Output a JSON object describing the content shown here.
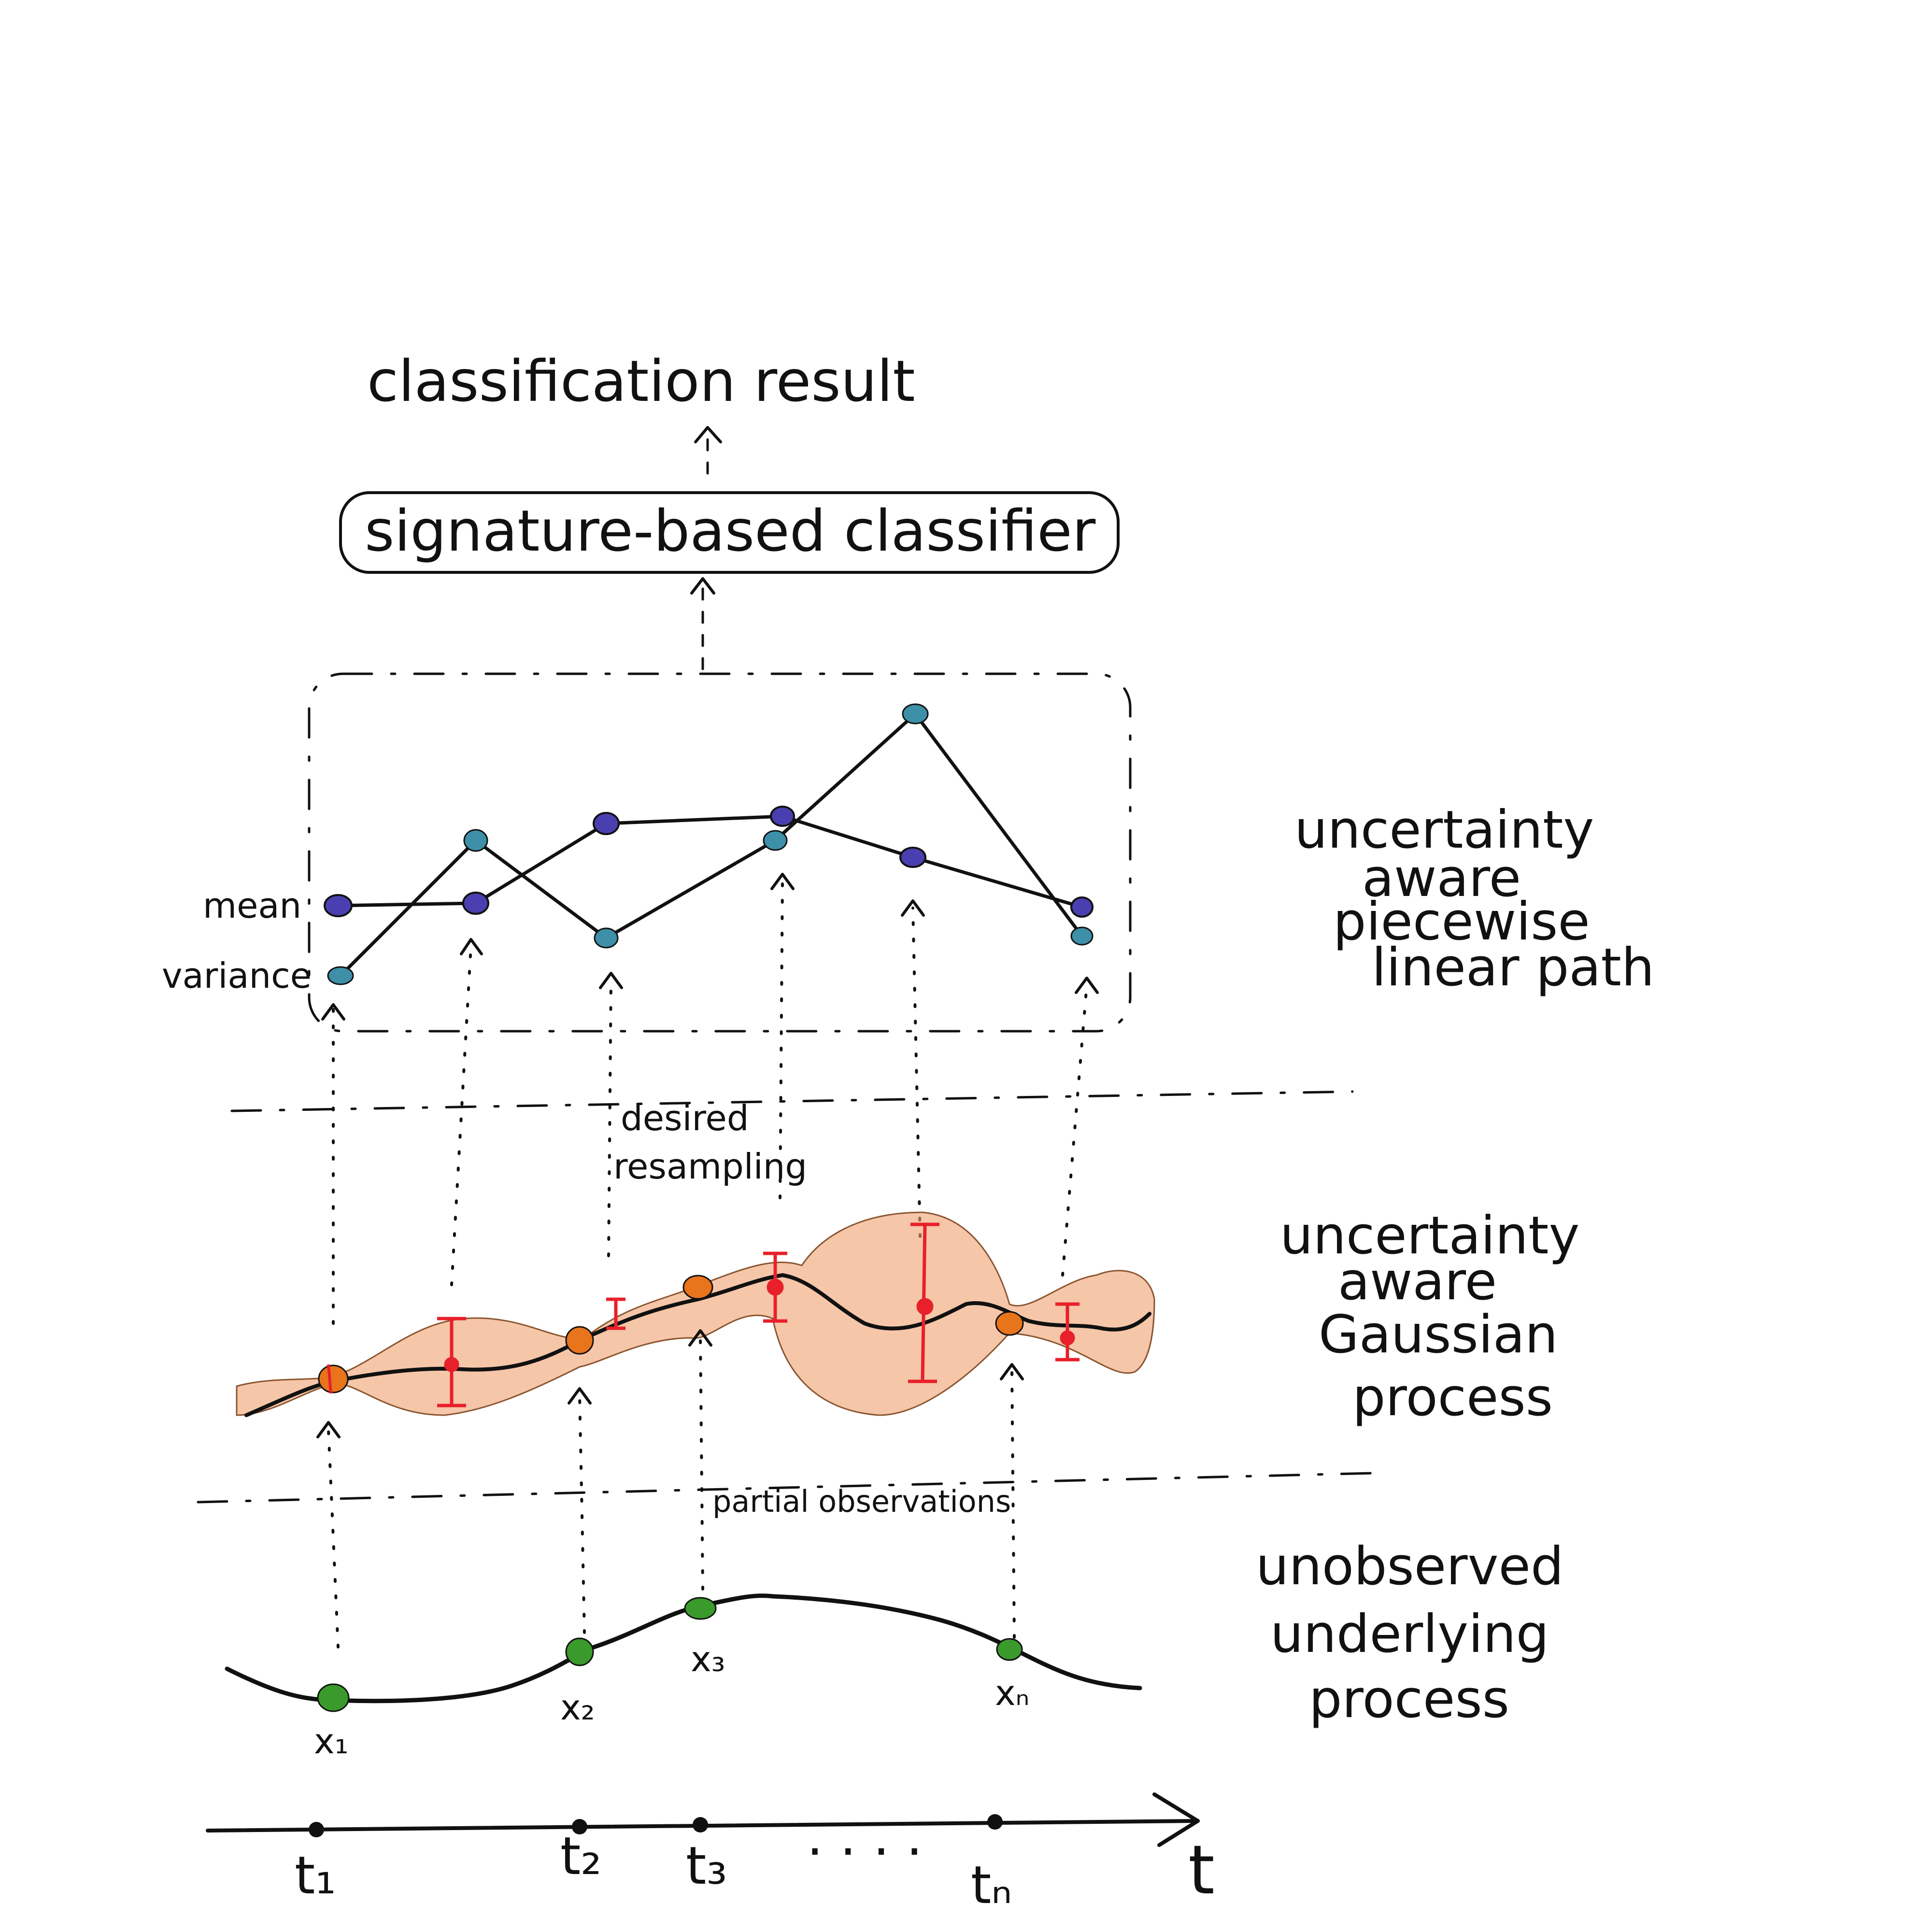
{
  "labels": {
    "classification_result": "classification result",
    "classifier": "signature-based classifier",
    "mean": "mean",
    "variance": "variance",
    "desired_resampling_1": "desired",
    "desired_resampling_2": "resampling",
    "partial_observations": "partial observations",
    "path_1": "uncertainty",
    "path_2": "aware",
    "path_3": "piecewise",
    "path_4": "linear path",
    "gp_1": "uncertainty",
    "gp_2": "aware",
    "gp_3": "Gaussian",
    "gp_4": "process",
    "under_1": "unobserved",
    "under_2": "underlying",
    "under_3": "process",
    "x1": "x₁",
    "x2": "x₂",
    "x3": "x₃",
    "xn": "xₙ",
    "t1": "t₁",
    "t2": "t₂",
    "t3": "t₃",
    "tn": "tₙ",
    "dots": ". . . .",
    "t": "t"
  },
  "colors": {
    "ink": "#111111",
    "mean_dot": "#4a3fb0",
    "variance_dot": "#3e8fa8",
    "observation_dot": "#3a9a2c",
    "gp_band": "#f0a070",
    "gp_point": "#e8741c",
    "error_bar": "#e8202a"
  }
}
